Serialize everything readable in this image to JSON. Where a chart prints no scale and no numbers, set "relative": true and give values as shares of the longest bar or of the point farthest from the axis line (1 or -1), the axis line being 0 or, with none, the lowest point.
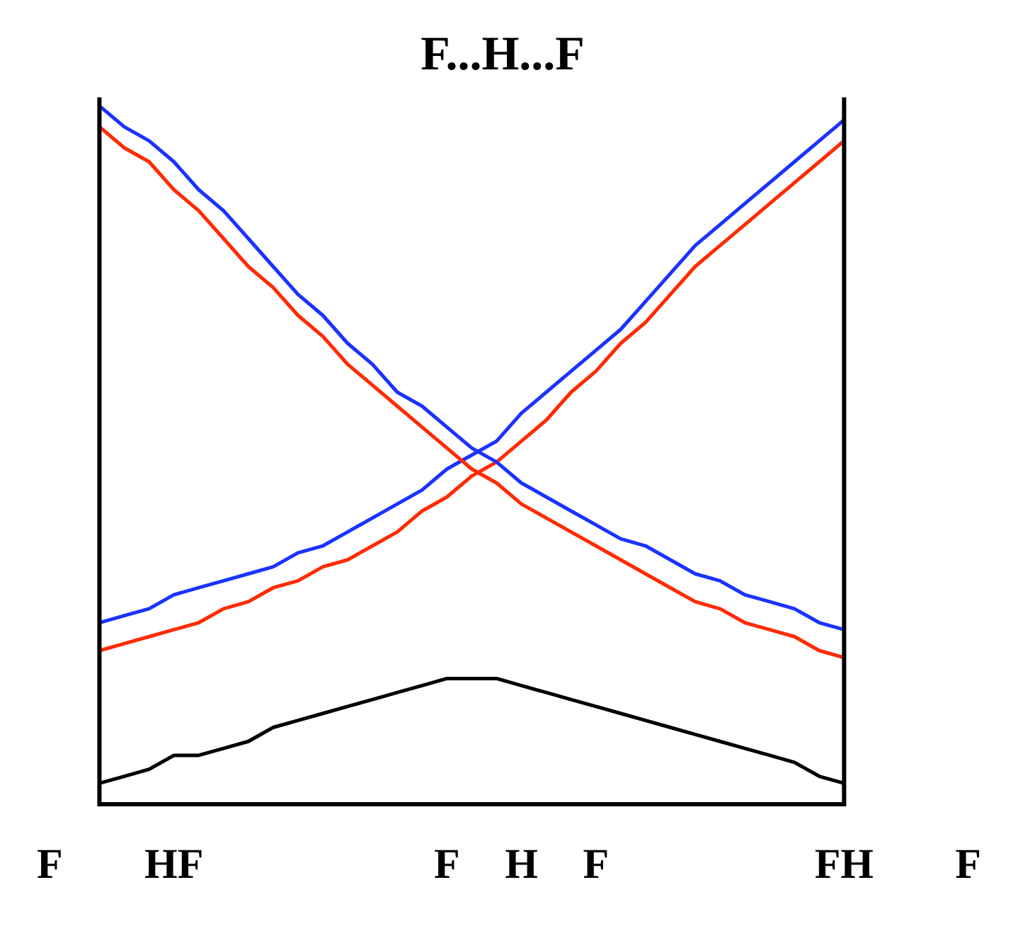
{
  "chart_data": {
    "type": "line",
    "title": "F...H...F",
    "relative": true,
    "categories": [
      "F",
      null,
      null,
      null,
      null,
      "HF",
      null,
      null,
      null,
      null,
      null,
      null,
      null,
      null,
      null,
      null,
      "F",
      null,
      null,
      "H",
      null,
      null,
      "F",
      null,
      null,
      null,
      null,
      null,
      null,
      null,
      null,
      null,
      "FH",
      null,
      null,
      null,
      null,
      "F"
    ],
    "series": [
      {
        "color": "#1a33ff",
        "values": [
          null,
          null,
          1.0,
          0.97,
          0.95,
          0.92,
          0.88,
          0.85,
          0.81,
          0.77,
          0.73,
          0.7,
          0.66,
          0.63,
          0.59,
          0.57,
          0.54,
          0.51,
          0.49,
          0.46,
          0.44,
          0.42,
          0.4,
          0.38,
          0.37,
          0.35,
          0.33,
          0.32,
          0.3,
          0.29,
          0.28,
          0.26,
          0.25,
          null,
          null,
          null,
          null,
          null
        ]
      },
      {
        "color": "#ff2a00",
        "values": [
          null,
          null,
          0.97,
          0.94,
          0.92,
          0.88,
          0.85,
          0.81,
          0.77,
          0.74,
          0.7,
          0.67,
          0.63,
          0.6,
          0.57,
          0.54,
          0.51,
          0.48,
          0.46,
          0.43,
          0.41,
          0.39,
          0.37,
          0.35,
          0.33,
          0.31,
          0.29,
          0.28,
          0.26,
          0.25,
          0.24,
          0.22,
          0.21,
          null,
          null,
          null,
          null,
          null
        ]
      },
      {
        "color": "#1a33ff",
        "values": [
          null,
          null,
          0.26,
          0.27,
          0.28,
          0.3,
          0.31,
          0.32,
          0.33,
          0.34,
          0.36,
          0.37,
          0.39,
          0.41,
          0.43,
          0.45,
          0.48,
          0.5,
          0.52,
          0.56,
          0.59,
          0.62,
          0.65,
          0.68,
          0.72,
          0.76,
          0.8,
          0.83,
          0.86,
          0.89,
          0.92,
          0.95,
          0.98,
          null,
          null,
          null,
          null,
          null
        ]
      },
      {
        "color": "#ff2a00",
        "values": [
          null,
          null,
          0.22,
          0.23,
          0.24,
          0.25,
          0.26,
          0.28,
          0.29,
          0.31,
          0.32,
          0.34,
          0.35,
          0.37,
          0.39,
          0.42,
          0.44,
          0.47,
          0.49,
          0.52,
          0.55,
          0.59,
          0.62,
          0.66,
          0.69,
          0.73,
          0.77,
          0.8,
          0.83,
          0.86,
          0.89,
          0.92,
          0.95,
          null,
          null,
          null,
          null,
          null
        ]
      },
      {
        "color": "#000000",
        "values": [
          null,
          null,
          0.03,
          0.04,
          0.05,
          0.07,
          0.07,
          0.08,
          0.09,
          0.11,
          0.12,
          0.13,
          0.14,
          0.15,
          0.16,
          0.17,
          0.18,
          0.18,
          0.18,
          0.17,
          0.16,
          0.15,
          0.14,
          0.13,
          0.12,
          0.11,
          0.1,
          0.09,
          0.08,
          0.07,
          0.06,
          0.04,
          0.03,
          null,
          null,
          null,
          null,
          null
        ]
      }
    ]
  }
}
